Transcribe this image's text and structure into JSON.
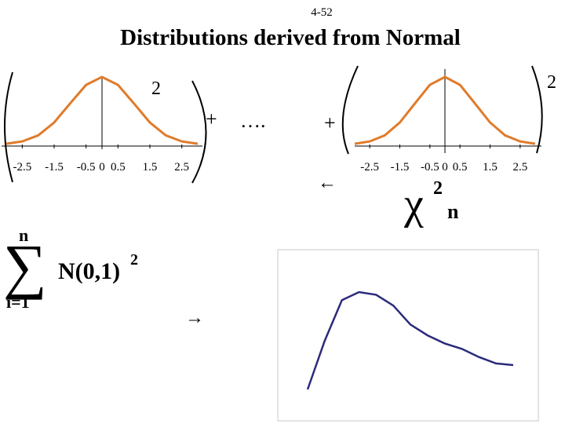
{
  "slide": {
    "number": "4-52",
    "title": "Distributions derived from Normal"
  },
  "left_term": {
    "exponent": "2",
    "tick_labels": [
      "-2.5",
      "-1.5",
      "-0.5",
      "0",
      "0.5",
      "1.5",
      "2.5"
    ]
  },
  "right_term": {
    "exponent": "2",
    "tick_labels": [
      "-2.5",
      "-1.5",
      "-0.5",
      "0",
      "0.5",
      "1.5",
      "2.5"
    ]
  },
  "operators": {
    "plus_1": "+",
    "ellipsis": "….",
    "plus_2": "+",
    "arrow_left": "←",
    "arrow_right": "→"
  },
  "chi_square": {
    "symbol": "χ",
    "superscript": "2",
    "subscript": "n"
  },
  "summation": {
    "symbol": "∑",
    "upper": "n",
    "lower": "i=1",
    "term": "N(0,1)",
    "exponent": "2"
  },
  "colors": {
    "normal_curve": "#e07b2a",
    "chi_curve": "#2b2a7c",
    "axis": "#000000",
    "frame": "#c8c8c8"
  },
  "chart_data": [
    {
      "type": "line",
      "x": [
        -3,
        -2.5,
        -2,
        -1.5,
        -1,
        -0.5,
        0,
        0.5,
        1,
        1.5,
        2,
        2.5,
        3
      ],
      "y": [
        0.004,
        0.018,
        0.054,
        0.13,
        0.242,
        0.352,
        0.399,
        0.352,
        0.242,
        0.13,
        0.054,
        0.018,
        0.004
      ],
      "xticks": [
        "-2.5",
        "-1.5",
        "-0.5",
        "0",
        "0.5",
        "1.5",
        "2.5"
      ]
    },
    {
      "type": "line",
      "x": [
        -3,
        -2.5,
        -2,
        -1.5,
        -1,
        -0.5,
        0,
        0.5,
        1,
        1.5,
        2,
        2.5,
        3
      ],
      "y": [
        0.004,
        0.018,
        0.054,
        0.13,
        0.242,
        0.352,
        0.399,
        0.352,
        0.242,
        0.13,
        0.054,
        0.018,
        0.004
      ],
      "xticks": [
        "-2.5",
        "-1.5",
        "-0.5",
        "0",
        "0.5",
        "1.5",
        "2.5"
      ]
    },
    {
      "type": "line",
      "x": [
        0,
        1,
        2,
        3,
        4,
        5,
        6,
        7,
        8,
        9,
        10,
        11,
        12
      ],
      "y": [
        0,
        0.09,
        0.165,
        0.18,
        0.175,
        0.155,
        0.12,
        0.1,
        0.085,
        0.075,
        0.06,
        0.048,
        0.045
      ]
    }
  ]
}
